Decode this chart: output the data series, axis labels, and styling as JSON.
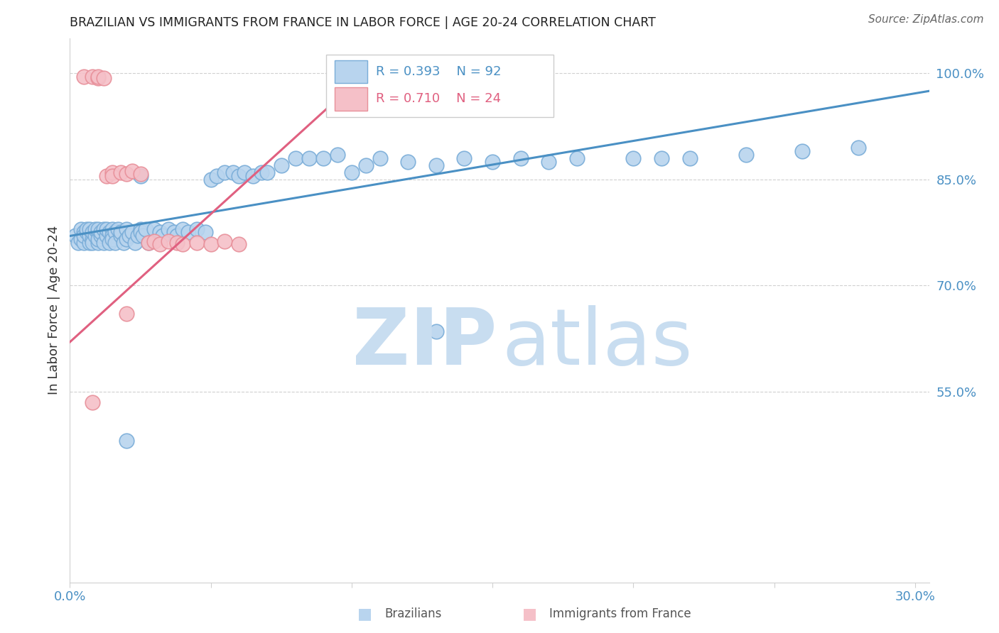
{
  "title": "BRAZILIAN VS IMMIGRANTS FROM FRANCE IN LABOR FORCE | AGE 20-24 CORRELATION CHART",
  "source": "Source: ZipAtlas.com",
  "ylabel": "In Labor Force | Age 20-24",
  "watermark_zip": "ZIP",
  "watermark_atlas": "atlas",
  "xlim_min": 0.0,
  "xlim_max": 0.305,
  "ylim_min": 0.28,
  "ylim_max": 1.05,
  "xticks": [
    0.0,
    0.05,
    0.1,
    0.15,
    0.2,
    0.25,
    0.3
  ],
  "xticklabels": [
    "0.0%",
    "",
    "",
    "",
    "",
    "",
    "30.0%"
  ],
  "yticks_right": [
    1.0,
    0.85,
    0.7,
    0.55
  ],
  "ytick_labels_right": [
    "100.0%",
    "85.0%",
    "70.0%",
    "55.0%"
  ],
  "blue_scatter_color": "#b8d4ee",
  "blue_scatter_edge": "#7aadd8",
  "pink_scatter_color": "#f5c0c8",
  "pink_scatter_edge": "#e8909a",
  "blue_line_color": "#4a90c4",
  "pink_line_color": "#e06080",
  "axis_tick_color": "#4a90c4",
  "grid_color": "#d0d0d0",
  "title_color": "#222222",
  "ylabel_color": "#333333",
  "source_color": "#666666",
  "watermark_color": "#c8ddf0",
  "legend_r_blue": "R = 0.393",
  "legend_n_blue": "N = 92",
  "legend_r_pink": "R = 0.710",
  "legend_n_pink": "N = 24",
  "legend_text_blue": "#4a90c4",
  "legend_text_pink": "#e06080",
  "brazil_x": [
    0.002,
    0.003,
    0.004,
    0.004,
    0.005,
    0.005,
    0.005,
    0.006,
    0.006,
    0.007,
    0.007,
    0.007,
    0.008,
    0.008,
    0.008,
    0.009,
    0.009,
    0.01,
    0.01,
    0.01,
    0.01,
    0.011,
    0.011,
    0.012,
    0.012,
    0.013,
    0.013,
    0.014,
    0.014,
    0.015,
    0.015,
    0.015,
    0.016,
    0.016,
    0.017,
    0.018,
    0.018,
    0.019,
    0.02,
    0.02,
    0.021,
    0.022,
    0.023,
    0.024,
    0.025,
    0.025,
    0.026,
    0.027,
    0.028,
    0.03,
    0.032,
    0.033,
    0.035,
    0.037,
    0.038,
    0.04,
    0.042,
    0.045,
    0.048,
    0.05,
    0.052,
    0.055,
    0.058,
    0.06,
    0.062,
    0.065,
    0.068,
    0.07,
    0.075,
    0.08,
    0.085,
    0.09,
    0.095,
    0.1,
    0.105,
    0.11,
    0.12,
    0.13,
    0.14,
    0.15,
    0.16,
    0.17,
    0.18,
    0.2,
    0.21,
    0.22,
    0.24,
    0.26,
    0.025,
    0.13,
    0.02,
    0.28
  ],
  "brazil_y": [
    0.77,
    0.76,
    0.78,
    0.765,
    0.775,
    0.76,
    0.77,
    0.775,
    0.78,
    0.76,
    0.77,
    0.78,
    0.765,
    0.775,
    0.76,
    0.77,
    0.78,
    0.76,
    0.775,
    0.765,
    0.78,
    0.77,
    0.775,
    0.78,
    0.76,
    0.77,
    0.78,
    0.775,
    0.76,
    0.78,
    0.77,
    0.765,
    0.775,
    0.76,
    0.78,
    0.77,
    0.775,
    0.76,
    0.78,
    0.765,
    0.77,
    0.775,
    0.76,
    0.77,
    0.78,
    0.775,
    0.77,
    0.78,
    0.76,
    0.78,
    0.775,
    0.77,
    0.78,
    0.775,
    0.77,
    0.78,
    0.775,
    0.78,
    0.775,
    0.85,
    0.855,
    0.86,
    0.86,
    0.855,
    0.86,
    0.855,
    0.86,
    0.86,
    0.87,
    0.88,
    0.88,
    0.88,
    0.885,
    0.86,
    0.87,
    0.88,
    0.875,
    0.87,
    0.88,
    0.875,
    0.88,
    0.875,
    0.88,
    0.88,
    0.88,
    0.88,
    0.885,
    0.89,
    0.855,
    0.635,
    0.48,
    0.895
  ],
  "france_x": [
    0.005,
    0.008,
    0.01,
    0.01,
    0.012,
    0.013,
    0.015,
    0.015,
    0.018,
    0.02,
    0.022,
    0.025,
    0.028,
    0.03,
    0.032,
    0.035,
    0.038,
    0.04,
    0.045,
    0.05,
    0.055,
    0.06,
    0.008,
    0.02
  ],
  "france_y": [
    0.995,
    0.995,
    0.993,
    0.995,
    0.993,
    0.855,
    0.86,
    0.855,
    0.86,
    0.858,
    0.862,
    0.858,
    0.76,
    0.762,
    0.758,
    0.762,
    0.76,
    0.758,
    0.76,
    0.758,
    0.762,
    0.758,
    0.535,
    0.66
  ],
  "blue_line_x0": 0.0,
  "blue_line_y0": 0.77,
  "blue_line_x1": 0.305,
  "blue_line_y1": 0.975,
  "pink_line_x0": 0.0,
  "pink_line_y0": 0.62,
  "pink_line_x1": 0.105,
  "pink_line_y1": 1.0
}
